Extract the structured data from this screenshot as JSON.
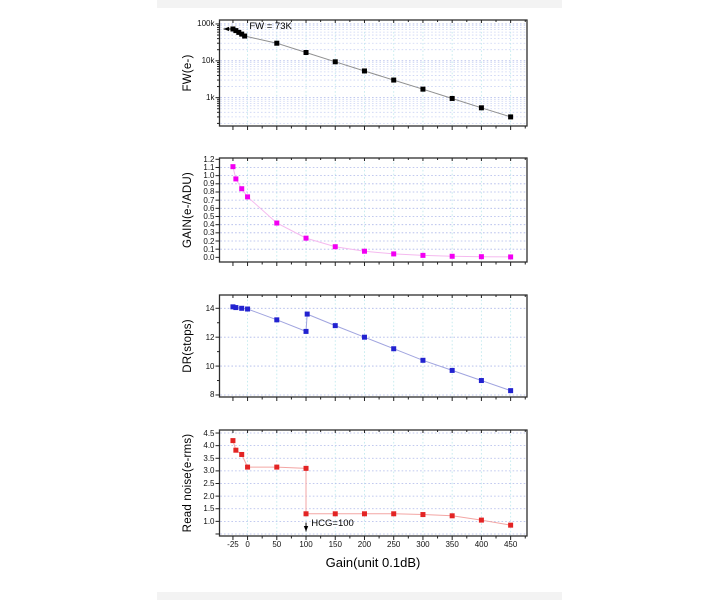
{
  "colors": {
    "frame": "#2e2e2e",
    "tick": "#222222",
    "grid_h_major": "#aeb8ea",
    "grid_h_minor": "#ccd4f4",
    "grid_v": "#c2eaee",
    "background": "#ffffff"
  },
  "chart_data": [
    {
      "type": "line",
      "name": "full-well-capacity",
      "ylabel": "FW(e-)",
      "xlabel": "",
      "yscale": "log",
      "ylim": [
        170,
        128000
      ],
      "yticks_major": [
        1000,
        10000,
        100000
      ],
      "yticks_minor": "log",
      "grid_h": [
        1000,
        10000,
        100000
      ],
      "ylabels": [
        {
          "t": "100k",
          "v": 100000
        },
        {
          "t": "10k",
          "v": 10000
        },
        {
          "t": "1k",
          "v": 1000
        }
      ],
      "marker_color": "#000000",
      "line_color": "#8f8f8f",
      "x": [
        -25,
        -20,
        -15,
        -10,
        -5,
        50,
        100,
        150,
        200,
        250,
        300,
        350,
        400,
        450
      ],
      "y": [
        73000,
        66000,
        59000,
        53000,
        47000,
        30000,
        16800,
        9400,
        5300,
        3000,
        1700,
        950,
        530,
        300
      ],
      "annotation": {
        "text": "FW = 73K",
        "text_pos": {
          "x": 3,
          "y": 117000
        },
        "arrow": {
          "x1": -27,
          "y1": 73000,
          "x2": -41,
          "y2": 73000
        }
      }
    },
    {
      "type": "line",
      "name": "conversion-gain",
      "ylabel": "GAIN(e-/ADU)",
      "xlabel": "",
      "yscale": "linear",
      "ylim": [
        -0.057,
        1.216
      ],
      "yticks_major": [
        0.0,
        0.1,
        0.2,
        0.3,
        0.4,
        0.5,
        0.6,
        0.7,
        0.8,
        0.9,
        1.0,
        1.1,
        1.2
      ],
      "yticks_minor": [],
      "grid_h": [
        0.1,
        0.2,
        0.3,
        0.4,
        0.5,
        0.6,
        0.7,
        0.8,
        0.9,
        1.0,
        1.1
      ],
      "ylabels": [
        {
          "t": "1.2",
          "v": 1.2
        },
        {
          "t": "1.1",
          "v": 1.1
        },
        {
          "t": "1.0",
          "v": 1.0
        },
        {
          "t": "0.9",
          "v": 0.9
        },
        {
          "t": "0.8",
          "v": 0.8
        },
        {
          "t": "0.7",
          "v": 0.7
        },
        {
          "t": "0.6",
          "v": 0.6
        },
        {
          "t": "0.5",
          "v": 0.5
        },
        {
          "t": "0.4",
          "v": 0.4
        },
        {
          "t": "0.3",
          "v": 0.3
        },
        {
          "t": "0.2",
          "v": 0.2
        },
        {
          "t": "0.1",
          "v": 0.1
        },
        {
          "t": "0.0",
          "v": 0.0
        }
      ],
      "marker_color": "#f200f2",
      "line_color": "#f5b9ef",
      "x": [
        -25,
        -20,
        -10,
        0,
        50,
        100,
        150,
        200,
        250,
        300,
        350,
        400,
        450
      ],
      "y": [
        1.11,
        0.96,
        0.84,
        0.74,
        0.42,
        0.235,
        0.13,
        0.075,
        0.042,
        0.024,
        0.013,
        0.008,
        0.005
      ]
    },
    {
      "type": "line",
      "name": "dynamic-range",
      "ylabel": "DR(stops)",
      "xlabel": "",
      "yscale": "linear",
      "ylim": [
        7.86,
        14.92
      ],
      "yticks_major": [
        8,
        10,
        12,
        14
      ],
      "yticks_minor": [
        9,
        11,
        13
      ],
      "grid_h": [
        8,
        10,
        12,
        14
      ],
      "ylabels": [
        {
          "t": "14",
          "v": 14
        },
        {
          "t": "12",
          "v": 12
        },
        {
          "t": "10",
          "v": 10
        },
        {
          "t": "8",
          "v": 8
        }
      ],
      "marker_color": "#2222d0",
      "line_color": "#a0a4df",
      "x": [
        -25,
        -20,
        -10,
        0,
        50,
        100,
        102,
        150,
        200,
        250,
        300,
        350,
        400,
        450
      ],
      "y": [
        14.1,
        14.05,
        14.0,
        13.95,
        13.2,
        12.4,
        13.6,
        12.8,
        12.0,
        11.2,
        10.4,
        9.7,
        9.0,
        8.3
      ]
    },
    {
      "type": "line",
      "name": "read-noise",
      "ylabel": "Read noise(e-rms)",
      "xlabel": "Gain(unit 0.1dB)",
      "yscale": "linear",
      "ylim": [
        0.42,
        4.62
      ],
      "yticks_major": [
        0.5,
        1.0,
        1.5,
        2.0,
        2.5,
        3.0,
        3.5,
        4.0,
        4.5
      ],
      "yticks_minor": [],
      "grid_h": [
        0.5,
        1.0,
        1.5,
        2.0,
        2.5,
        3.0,
        3.5,
        4.0,
        4.5
      ],
      "ylabels": [
        {
          "t": "4.5",
          "v": 4.5
        },
        {
          "t": "4.0",
          "v": 4.0
        },
        {
          "t": "3.5",
          "v": 3.5
        },
        {
          "t": "3.0",
          "v": 3.0
        },
        {
          "t": "2.5",
          "v": 2.5
        },
        {
          "t": "2.0",
          "v": 2.0
        },
        {
          "t": "1.5",
          "v": 1.5
        },
        {
          "t": "1.0",
          "v": 1.0
        }
      ],
      "marker_color": "#e32424",
      "line_color": "#f3a6a4",
      "x": [
        -25,
        -20,
        -10,
        0,
        50,
        100,
        100,
        150,
        200,
        250,
        300,
        350,
        400,
        450
      ],
      "y": [
        4.2,
        3.82,
        3.65,
        3.15,
        3.15,
        3.1,
        1.3,
        1.3,
        1.3,
        1.3,
        1.27,
        1.22,
        1.05,
        0.85
      ],
      "xlim": [
        -48,
        478
      ],
      "xticks": [
        -25,
        0,
        50,
        100,
        150,
        200,
        250,
        300,
        350,
        400,
        450
      ],
      "xtick_labels": [
        "-25",
        "0",
        "50",
        "100",
        "150",
        "200",
        "250",
        "300",
        "350",
        "400",
        "450"
      ],
      "xticks_minor": [
        25,
        75,
        125,
        175,
        225,
        275,
        325,
        375,
        425,
        475
      ],
      "grid_x": [
        0,
        50,
        100,
        150,
        200,
        250,
        300,
        350,
        400,
        450
      ],
      "annotation": {
        "text": "HCG=100",
        "text_pos": {
          "x": 109,
          "y": 1.12
        },
        "arrow": {
          "x1": 100,
          "y1": 0.95,
          "x2": 100,
          "y2": 0.6
        }
      }
    }
  ]
}
